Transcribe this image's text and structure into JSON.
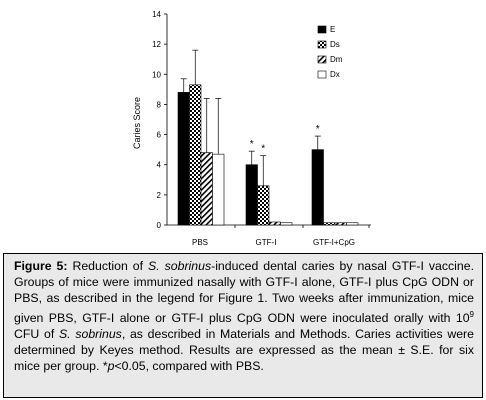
{
  "chart_data": {
    "type": "bar",
    "title": "",
    "xlabel": "",
    "ylabel": "Caries Score",
    "ylim": [
      0,
      14
    ],
    "yticks": [
      "0",
      "2",
      "4",
      "6",
      "8",
      "10",
      "12",
      "14"
    ],
    "categories": [
      "PBS",
      "GTF-I",
      "GTF-I+CpG"
    ],
    "legend_position": "top-right",
    "grid": false,
    "series": [
      {
        "name": "E",
        "pattern": "solid-black",
        "values": [
          8.8,
          4.0,
          5.0
        ],
        "errors": [
          0.9,
          0.9,
          0.9
        ]
      },
      {
        "name": "Ds",
        "pattern": "checker",
        "values": [
          9.3,
          2.6,
          0.15
        ],
        "errors": [
          2.3,
          2.0,
          0.05
        ]
      },
      {
        "name": "Dm",
        "pattern": "hatch",
        "values": [
          4.8,
          0.2,
          0.15
        ],
        "errors": [
          3.6,
          0.05,
          0.05
        ]
      },
      {
        "name": "Dx",
        "pattern": "white",
        "values": [
          4.7,
          0.15,
          0.15
        ],
        "errors": [
          3.7,
          0.05,
          0.05
        ]
      }
    ],
    "annotations": [
      {
        "text": "*",
        "category": "GTF-I",
        "series": "E"
      },
      {
        "text": "*",
        "category": "GTF-I",
        "series": "Ds"
      },
      {
        "text": "*",
        "category": "GTF-I+CpG",
        "series": "E"
      }
    ]
  },
  "caption": {
    "label": "Figure 5:",
    "t1": " Reduction of ",
    "species": "S. sobrinus",
    "t2": "-induced dental caries by nasal GTF-I vaccine. Groups of mice were immunized nasally with GTF-I alone, GTF-I plus CpG ODN or PBS, as described in the legend for Figure 1. Two weeks after immunization, mice given PBS, GTF-I alone or GTF-I plus CpG ODN were inoculated orally with 10",
    "exponent": "9",
    "t3": " CFU of ",
    "species2": "S. sobrinus",
    "t4": ", as described in Materials and Methods. Caries activities were determined by Keyes method. Results are expressed as the mean ± S.E. for six mice per group. *",
    "p": "p",
    "t5": "<0.05, compared with PBS."
  }
}
